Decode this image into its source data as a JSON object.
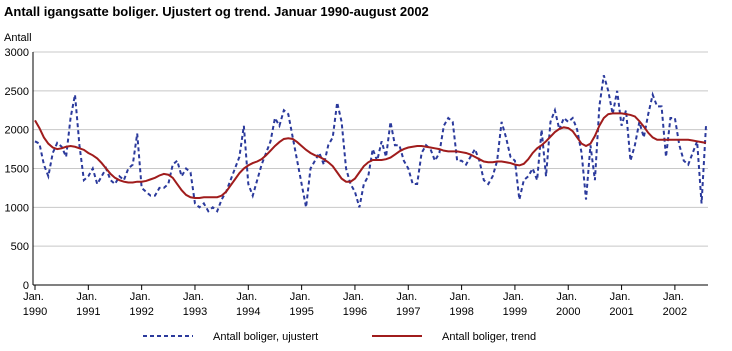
{
  "chart_data": {
    "type": "line",
    "title": "Antall igangsatte boliger. Ujustert og trend. Januar 1990-august 2002",
    "y_label": "Antall",
    "categories": [
      "Jan. 1990",
      null,
      null,
      null,
      null,
      null,
      null,
      null,
      null,
      null,
      null,
      null,
      "Jan. 1991",
      null,
      null,
      null,
      null,
      null,
      null,
      null,
      null,
      null,
      null,
      null,
      "Jan. 1992",
      null,
      null,
      null,
      null,
      null,
      null,
      null,
      null,
      null,
      null,
      null,
      "Jan. 1993",
      null,
      null,
      null,
      null,
      null,
      null,
      null,
      null,
      null,
      null,
      null,
      "Jan. 1994",
      null,
      null,
      null,
      null,
      null,
      null,
      null,
      null,
      null,
      null,
      null,
      "Jan. 1995",
      null,
      null,
      null,
      null,
      null,
      null,
      null,
      null,
      null,
      null,
      null,
      "Jan. 1996",
      null,
      null,
      null,
      null,
      null,
      null,
      null,
      null,
      null,
      null,
      null,
      "Jan. 1997",
      null,
      null,
      null,
      null,
      null,
      null,
      null,
      null,
      null,
      null,
      null,
      "Jan. 1998",
      null,
      null,
      null,
      null,
      null,
      null,
      null,
      null,
      null,
      null,
      null,
      "Jan. 1999",
      null,
      null,
      null,
      null,
      null,
      null,
      null,
      null,
      null,
      null,
      null,
      "Jan. 2000",
      null,
      null,
      null,
      null,
      null,
      null,
      null,
      null,
      null,
      null,
      null,
      "Jan. 2001",
      null,
      null,
      null,
      null,
      null,
      null,
      null,
      null,
      null,
      null,
      null,
      "Jan. 2002",
      null,
      null,
      null,
      null,
      null,
      null,
      null
    ],
    "series": [
      {
        "name": "Antall boliger, ujustert",
        "color": "#2b3a9c",
        "dashed": true,
        "values": [
          1850,
          1820,
          1550,
          1400,
          1700,
          1830,
          1780,
          1650,
          2150,
          2450,
          1800,
          1350,
          1400,
          1500,
          1300,
          1400,
          1500,
          1350,
          1300,
          1400,
          1350,
          1500,
          1550,
          1950,
          1250,
          1200,
          1150,
          1150,
          1250,
          1250,
          1300,
          1550,
          1600,
          1400,
          1500,
          1450,
          1050,
          1000,
          1050,
          950,
          1000,
          950,
          1100,
          1200,
          1350,
          1500,
          1650,
          2050,
          1300,
          1150,
          1350,
          1550,
          1700,
          1850,
          2150,
          2050,
          2250,
          2200,
          1900,
          1600,
          1300,
          1000,
          1500,
          1600,
          1700,
          1550,
          1800,
          1900,
          2350,
          2100,
          1500,
          1300,
          1200,
          1000,
          1300,
          1400,
          1750,
          1600,
          1850,
          1650,
          2100,
          1800,
          1800,
          1600,
          1500,
          1300,
          1300,
          1700,
          1800,
          1750,
          1600,
          1700,
          2050,
          2150,
          2100,
          1600,
          1600,
          1550,
          1650,
          1750,
          1600,
          1350,
          1300,
          1400,
          1600,
          2100,
          1900,
          1650,
          1600,
          1100,
          1350,
          1400,
          1500,
          1350,
          2000,
          1400,
          2100,
          2250,
          2000,
          2150,
          2100,
          2150,
          2000,
          1700,
          1100,
          1800,
          1350,
          2300,
          2700,
          2500,
          2200,
          2500,
          2050,
          2250,
          1600,
          1800,
          2100,
          1900,
          2200,
          2450,
          2300,
          2300,
          1650,
          2150,
          2150,
          1800,
          1600,
          1550,
          1700,
          1850,
          1050,
          2050
        ]
      },
      {
        "name": "Antall boliger, trend",
        "color": "#a01c1c",
        "dashed": false,
        "values": [
          2120,
          2020,
          1900,
          1820,
          1770,
          1750,
          1760,
          1780,
          1790,
          1780,
          1760,
          1740,
          1700,
          1670,
          1630,
          1570,
          1500,
          1430,
          1380,
          1350,
          1330,
          1320,
          1320,
          1330,
          1330,
          1340,
          1360,
          1380,
          1410,
          1430,
          1420,
          1380,
          1300,
          1220,
          1160,
          1130,
          1120,
          1120,
          1130,
          1130,
          1130,
          1130,
          1150,
          1200,
          1280,
          1360,
          1440,
          1500,
          1540,
          1570,
          1590,
          1620,
          1670,
          1730,
          1790,
          1840,
          1880,
          1890,
          1880,
          1840,
          1790,
          1740,
          1700,
          1670,
          1650,
          1620,
          1580,
          1530,
          1450,
          1370,
          1330,
          1330,
          1370,
          1450,
          1530,
          1580,
          1610,
          1610,
          1610,
          1620,
          1640,
          1680,
          1720,
          1750,
          1770,
          1780,
          1790,
          1790,
          1780,
          1770,
          1760,
          1750,
          1730,
          1720,
          1720,
          1720,
          1710,
          1700,
          1680,
          1650,
          1620,
          1590,
          1580,
          1580,
          1590,
          1590,
          1580,
          1570,
          1550,
          1540,
          1560,
          1620,
          1700,
          1760,
          1800,
          1850,
          1910,
          1970,
          2010,
          2030,
          2020,
          1980,
          1900,
          1820,
          1790,
          1820,
          1920,
          2050,
          2150,
          2200,
          2210,
          2210,
          2210,
          2200,
          2190,
          2170,
          2110,
          2040,
          1960,
          1900,
          1870,
          1870,
          1870,
          1870,
          1870,
          1870,
          1870,
          1870,
          1860,
          1850,
          1840,
          1830
        ]
      }
    ],
    "ylim": [
      0,
      3000
    ],
    "yticks": [
      0,
      500,
      1000,
      1500,
      2000,
      2500,
      3000
    ],
    "grid": true
  }
}
